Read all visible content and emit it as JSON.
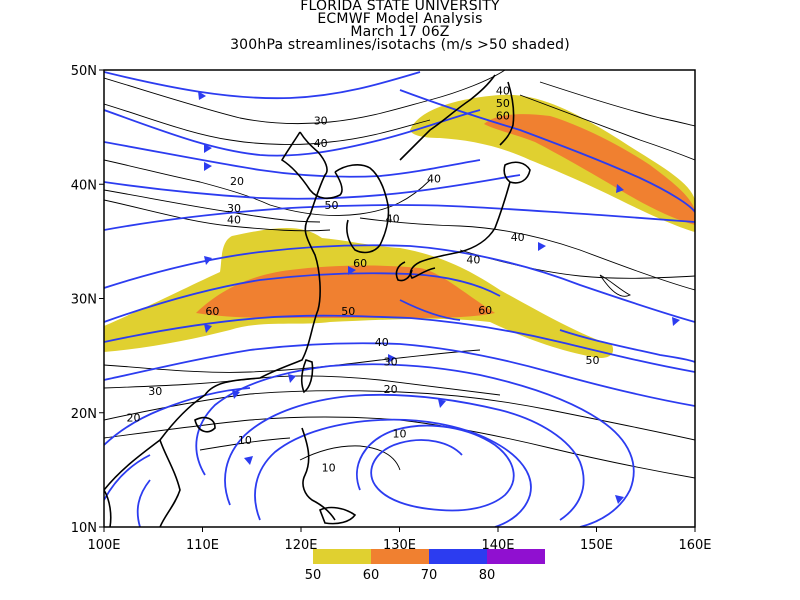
{
  "titles": {
    "line1": "FLORIDA STATE UNIVERSITY",
    "line2": "ECMWF Model Analysis",
    "line3": "March 17 06Z",
    "line4": "300hPa streamlines/isotachs (m/s >50 shaded)"
  },
  "axes": {
    "lon_ticks": [
      "100E",
      "110E",
      "120E",
      "130E",
      "140E",
      "150E",
      "160E"
    ],
    "lat_ticks": [
      "10N",
      "20N",
      "30N",
      "40N",
      "50N"
    ],
    "lon_range": [
      100,
      160
    ],
    "lat_range": [
      10,
      50
    ]
  },
  "legend": {
    "items": [
      {
        "label": "50",
        "color": "#E0D030"
      },
      {
        "label": "60",
        "color": "#F08030"
      },
      {
        "label": "70",
        "color": "#2C3CF0"
      },
      {
        "label": "80",
        "color": "#9010D0"
      }
    ]
  },
  "contour_labels": [
    {
      "text": "40",
      "lon": 140.5,
      "lat": 48.2
    },
    {
      "text": "50",
      "lon": 140.5,
      "lat": 47.1
    },
    {
      "text": "60",
      "lon": 140.5,
      "lat": 46.0
    },
    {
      "text": "30",
      "lon": 122.0,
      "lat": 45.6
    },
    {
      "text": "40",
      "lon": 122.0,
      "lat": 43.6
    },
    {
      "text": "40",
      "lon": 133.5,
      "lat": 40.5
    },
    {
      "text": "20",
      "lon": 113.5,
      "lat": 40.3
    },
    {
      "text": "30",
      "lon": 113.2,
      "lat": 37.9
    },
    {
      "text": "40",
      "lon": 113.2,
      "lat": 36.9
    },
    {
      "text": "50",
      "lon": 123.1,
      "lat": 38.2
    },
    {
      "text": "40",
      "lon": 129.3,
      "lat": 37.0
    },
    {
      "text": "40",
      "lon": 142.0,
      "lat": 35.4
    },
    {
      "text": "40",
      "lon": 137.5,
      "lat": 33.4
    },
    {
      "text": "60",
      "lon": 126.0,
      "lat": 33.1
    },
    {
      "text": "60",
      "lon": 111.0,
      "lat": 28.9
    },
    {
      "text": "50",
      "lon": 124.8,
      "lat": 28.9
    },
    {
      "text": "60",
      "lon": 138.7,
      "lat": 29.0
    },
    {
      "text": "50",
      "lon": 149.6,
      "lat": 24.6
    },
    {
      "text": "40",
      "lon": 128.2,
      "lat": 26.2
    },
    {
      "text": "30",
      "lon": 129.1,
      "lat": 24.5
    },
    {
      "text": "30",
      "lon": 105.2,
      "lat": 21.9
    },
    {
      "text": "20",
      "lon": 129.1,
      "lat": 22.1
    },
    {
      "text": "20",
      "lon": 103.0,
      "lat": 19.6
    },
    {
      "text": "10",
      "lon": 130.0,
      "lat": 18.2
    },
    {
      "text": "10",
      "lon": 114.3,
      "lat": 17.6
    },
    {
      "text": "10",
      "lon": 122.8,
      "lat": 15.2
    }
  ],
  "colors": {
    "streamline": "#2C3CF0",
    "contour": "#000000",
    "coast": "#000000",
    "shade50": "#E0D030",
    "shade60": "#F08030"
  }
}
